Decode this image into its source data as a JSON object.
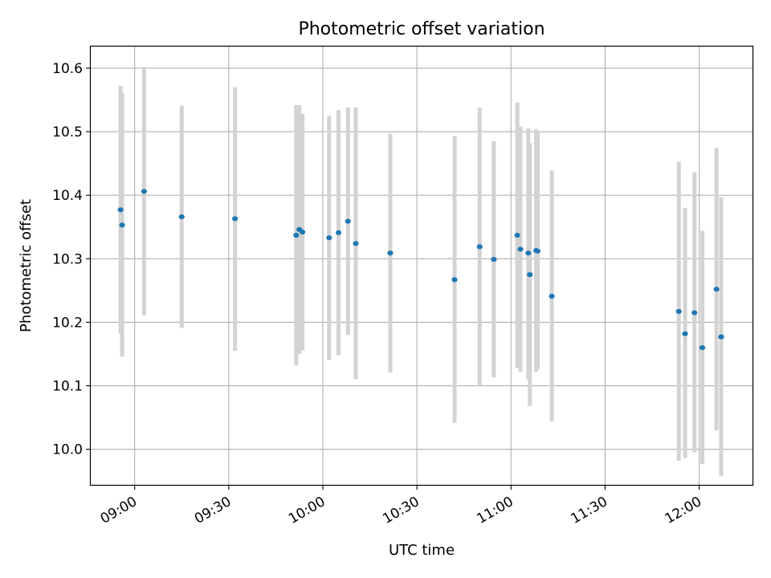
{
  "chart_data": {
    "type": "scatter",
    "title": "Photometric offset variation",
    "xlabel": "UTC time",
    "ylabel": "Photometric offset",
    "x_unit": "UTC time (HH:MM)",
    "xlim": [
      "08:46",
      "12:17"
    ],
    "ylim": [
      9.944,
      10.634
    ],
    "x_ticks": [
      "09:00",
      "09:30",
      "10:00",
      "10:30",
      "11:00",
      "11:30",
      "12:00"
    ],
    "y_ticks": [
      10.0,
      10.1,
      10.2,
      10.3,
      10.4,
      10.5,
      10.6
    ],
    "grid": true,
    "legend": "none",
    "colors": {
      "marker": "#1f77b4",
      "errorbar": "#d3d3d3",
      "grid": "#b0b0b0"
    },
    "points": [
      {
        "time": "08:55:30",
        "y": 10.377,
        "low": 10.182,
        "high": 10.572
      },
      {
        "time": "08:56:00",
        "y": 10.353,
        "low": 10.146,
        "high": 10.561
      },
      {
        "time": "09:03:00",
        "y": 10.406,
        "low": 10.211,
        "high": 10.602
      },
      {
        "time": "09:15:00",
        "y": 10.366,
        "low": 10.191,
        "high": 10.541
      },
      {
        "time": "09:32:00",
        "y": 10.363,
        "low": 10.155,
        "high": 10.57
      },
      {
        "time": "09:51:30",
        "y": 10.337,
        "low": 10.132,
        "high": 10.542
      },
      {
        "time": "09:52:30",
        "y": 10.346,
        "low": 10.15,
        "high": 10.542
      },
      {
        "time": "09:53:30",
        "y": 10.342,
        "low": 10.156,
        "high": 10.528
      },
      {
        "time": "10:02:00",
        "y": 10.333,
        "low": 10.141,
        "high": 10.525
      },
      {
        "time": "10:05:00",
        "y": 10.341,
        "low": 10.148,
        "high": 10.534
      },
      {
        "time": "10:08:00",
        "y": 10.359,
        "low": 10.18,
        "high": 10.538
      },
      {
        "time": "10:10:30",
        "y": 10.324,
        "low": 10.11,
        "high": 10.538
      },
      {
        "time": "10:21:30",
        "y": 10.309,
        "low": 10.121,
        "high": 10.497
      },
      {
        "time": "10:42:00",
        "y": 10.267,
        "low": 10.042,
        "high": 10.493
      },
      {
        "time": "10:50:00",
        "y": 10.319,
        "low": 10.1,
        "high": 10.538
      },
      {
        "time": "10:54:30",
        "y": 10.299,
        "low": 10.113,
        "high": 10.485
      },
      {
        "time": "11:02:00",
        "y": 10.337,
        "low": 10.128,
        "high": 10.546
      },
      {
        "time": "11:03:00",
        "y": 10.315,
        "low": 10.122,
        "high": 10.508
      },
      {
        "time": "11:05:30",
        "y": 10.309,
        "low": 10.11,
        "high": 10.505
      },
      {
        "time": "11:06:00",
        "y": 10.275,
        "low": 10.068,
        "high": 10.482
      },
      {
        "time": "11:08:00",
        "y": 10.313,
        "low": 10.122,
        "high": 10.504
      },
      {
        "time": "11:08:30",
        "y": 10.312,
        "low": 10.126,
        "high": 10.499
      },
      {
        "time": "11:13:00",
        "y": 10.241,
        "low": 10.044,
        "high": 10.439
      },
      {
        "time": "11:53:30",
        "y": 10.217,
        "low": 9.982,
        "high": 10.453
      },
      {
        "time": "11:55:30",
        "y": 10.182,
        "low": 9.986,
        "high": 10.38
      },
      {
        "time": "11:58:30",
        "y": 10.215,
        "low": 9.995,
        "high": 10.436
      },
      {
        "time": "12:01:00",
        "y": 10.16,
        "low": 9.977,
        "high": 10.344
      },
      {
        "time": "12:05:30",
        "y": 10.252,
        "low": 10.03,
        "high": 10.474
      },
      {
        "time": "12:07:00",
        "y": 10.177,
        "low": 9.958,
        "high": 10.397
      }
    ]
  }
}
